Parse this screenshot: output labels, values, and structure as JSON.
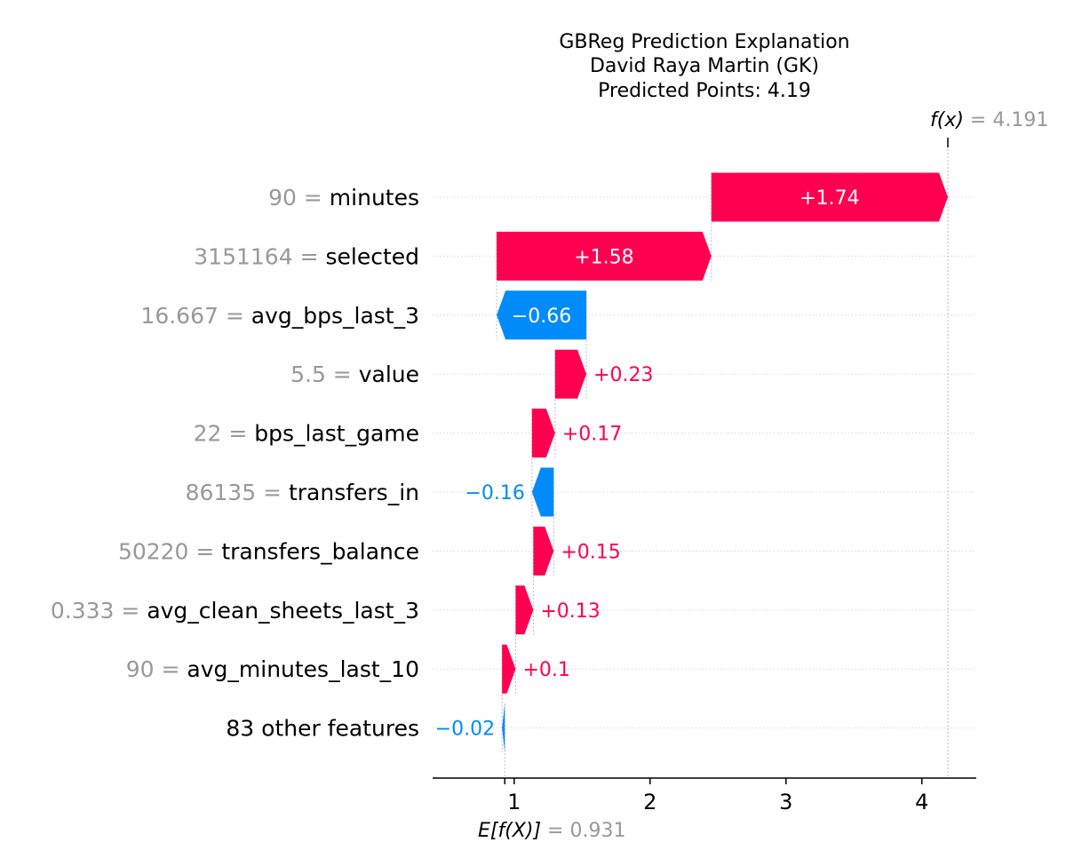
{
  "chart_data": {
    "type": "waterfall",
    "title": [
      "GBReg Prediction Explanation",
      "David Raya Martin (GK)",
      "Predicted Points: 4.19"
    ],
    "base_value": 0.931,
    "base_value_label": "0.931",
    "base_label_prefix": "E[f(X)]",
    "output_value": 4.191,
    "output_value_label": "4.191",
    "output_label_prefix": "f(x)",
    "xlim": [
      0.4,
      4.4
    ],
    "xticks": [
      1,
      2,
      3,
      4
    ],
    "colors": {
      "positive": "#ff0051",
      "negative": "#008bfb",
      "text_light": "#ffffff",
      "muted": "#999999"
    },
    "features": [
      {
        "value": "90",
        "name": "minutes",
        "contribution": 1.74,
        "label": "+1.74"
      },
      {
        "value": "3151164",
        "name": "selected",
        "contribution": 1.58,
        "label": "+1.58"
      },
      {
        "value": "16.667",
        "name": "avg_bps_last_3",
        "contribution": -0.66,
        "label": "−0.66"
      },
      {
        "value": "5.5",
        "name": "value",
        "contribution": 0.23,
        "label": "+0.23"
      },
      {
        "value": "22",
        "name": "bps_last_game",
        "contribution": 0.17,
        "label": "+0.17"
      },
      {
        "value": "86135",
        "name": "transfers_in",
        "contribution": -0.16,
        "label": "−0.16"
      },
      {
        "value": "50220",
        "name": "transfers_balance",
        "contribution": 0.15,
        "label": "+0.15"
      },
      {
        "value": "0.333",
        "name": "avg_clean_sheets_last_3",
        "contribution": 0.13,
        "label": "+0.13"
      },
      {
        "value": "90",
        "name": "avg_minutes_last_10",
        "contribution": 0.1,
        "label": "+0.1"
      },
      {
        "value": "",
        "name": "83 other features",
        "contribution": -0.02,
        "label": "−0.02"
      }
    ]
  }
}
